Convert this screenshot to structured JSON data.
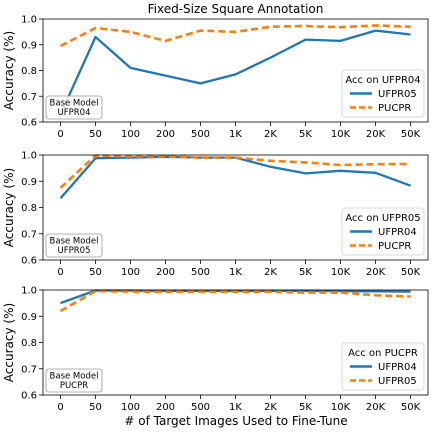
{
  "figure": {
    "xlabel": "# of Target Images Used to Fine-Tune",
    "ylabel": "Accuracy (%)"
  },
  "chart_data": [
    {
      "type": "line",
      "title": "Fixed-Size Square Annotation",
      "categories": [
        "0",
        "50",
        "100",
        "200",
        "500",
        "1K",
        "2K",
        "5K",
        "10K",
        "20K",
        "50K"
      ],
      "ylim": [
        0.6,
        1.0
      ],
      "yticks": [
        "0.6",
        "0.7",
        "0.8",
        "0.9",
        "1.0"
      ],
      "legend_title": "Acc on UFPR04",
      "legend_position": "lower-right",
      "base_model_label": [
        "Base Model",
        "UFPR04"
      ],
      "series": [
        {
          "name": "UFPR05",
          "color": "#1f77b4",
          "style": "solid",
          "values": [
            0.63,
            0.93,
            0.81,
            0.78,
            0.75,
            0.785,
            0.85,
            0.92,
            0.915,
            0.955,
            0.94
          ]
        },
        {
          "name": "PUCPR",
          "color": "#ff7f0e",
          "style": "dashed",
          "values": [
            0.895,
            0.965,
            0.95,
            0.915,
            0.955,
            0.95,
            0.97,
            0.973,
            0.968,
            0.975,
            0.97
          ]
        }
      ]
    },
    {
      "type": "line",
      "title": "",
      "categories": [
        "0",
        "50",
        "100",
        "200",
        "500",
        "1K",
        "2K",
        "5K",
        "10K",
        "20K",
        "50K"
      ],
      "ylim": [
        0.6,
        1.0
      ],
      "yticks": [
        "0.6",
        "0.7",
        "0.8",
        "0.9",
        "1.0"
      ],
      "legend_title": "Acc on UFPR05",
      "legend_position": "lower-right",
      "base_model_label": [
        "Base Model",
        "UFPR05"
      ],
      "series": [
        {
          "name": "UFPR04",
          "color": "#1f77b4",
          "style": "solid",
          "values": [
            0.835,
            0.988,
            0.99,
            0.993,
            0.99,
            0.99,
            0.955,
            0.93,
            0.94,
            0.932,
            0.883
          ]
        },
        {
          "name": "PUCPR",
          "color": "#ff7f0e",
          "style": "dashed",
          "values": [
            0.875,
            0.998,
            0.995,
            0.995,
            0.99,
            0.99,
            0.978,
            0.972,
            0.962,
            0.965,
            0.966
          ]
        }
      ]
    },
    {
      "type": "line",
      "title": "",
      "categories": [
        "0",
        "50",
        "100",
        "200",
        "500",
        "1K",
        "2K",
        "5K",
        "10K",
        "20K",
        "50K"
      ],
      "ylim": [
        0.6,
        1.0
      ],
      "yticks": [
        "0.6",
        "0.7",
        "0.8",
        "0.9",
        "1.0"
      ],
      "legend_title": "Acc on PUCPR",
      "legend_position": "lower-right",
      "base_model_label": [
        "Base Model",
        "PUCPR"
      ],
      "series": [
        {
          "name": "UFPR04",
          "color": "#1f77b4",
          "style": "solid",
          "values": [
            0.95,
            0.998,
            0.998,
            0.997,
            0.997,
            0.997,
            0.997,
            0.997,
            0.996,
            0.995,
            0.994
          ]
        },
        {
          "name": "UFPR05",
          "color": "#ff7f0e",
          "style": "dashed",
          "values": [
            0.92,
            0.996,
            0.994,
            0.993,
            0.993,
            0.993,
            0.993,
            0.99,
            0.99,
            0.98,
            0.975
          ]
        }
      ]
    }
  ]
}
